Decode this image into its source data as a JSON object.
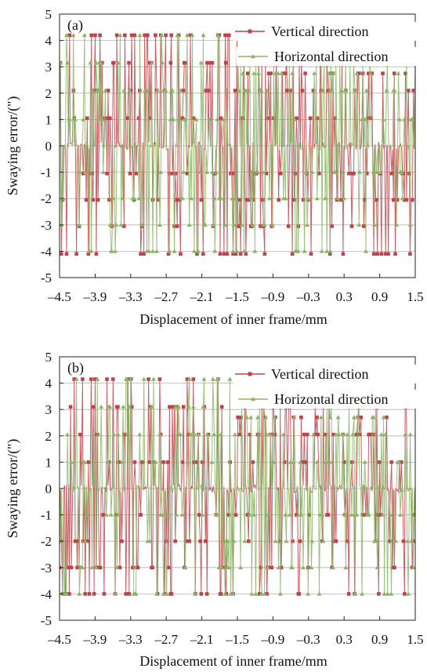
{
  "chart_data": [
    {
      "type": "line",
      "panel_label": "(a)",
      "xlabel": "Displacement of inner frame/mm",
      "ylabel": "Swaying error/(\")",
      "xlim": [
        -4.5,
        1.5
      ],
      "ylim": [
        -5,
        5
      ],
      "x_ticks": [
        "–4.5",
        "–3.9",
        "–3.3",
        "–2.7",
        "–2.1",
        "–1.5",
        "–0.9",
        "–0.3",
        "0.3",
        "0.9",
        "1.5"
      ],
      "y_ticks": [
        "5",
        "4",
        "3",
        "2",
        "1",
        "0",
        "-1",
        "-2",
        "-3",
        "-4",
        "-5"
      ],
      "grid": "horizontal",
      "legend_position": "top-right",
      "series": [
        {
          "name": "Vertical direction",
          "color": "#c0424a",
          "marker": "square",
          "levels": [
            -4.1,
            -3.05,
            -2.05,
            -1.05,
            0,
            1.05,
            2.1,
            3.15,
            4.2
          ],
          "max_level_after_x": [
            -1.5,
            2.75
          ],
          "noise_band": 0.15,
          "n_points": 360,
          "seed": 11
        },
        {
          "name": "Horizontal direction",
          "color": "#8bb566",
          "marker": "triangle",
          "levels": [
            -4.0,
            -3.0,
            -2.0,
            -1.0,
            0,
            1.0,
            2.1,
            3.15,
            4.2
          ],
          "max_level_after_x": [
            -1.5,
            2.75
          ],
          "noise_band": 0.15,
          "n_points": 360,
          "seed": 23
        }
      ]
    },
    {
      "type": "line",
      "panel_label": "(b)",
      "xlabel": "Displacement of inner frame/mm",
      "ylabel": "Swaying error/(\")",
      "xlim": [
        -4.5,
        1.5
      ],
      "ylim": [
        -5,
        5
      ],
      "x_ticks": [
        "–4.5",
        "–3.9",
        "–3.3",
        "–2.7",
        "–2.1",
        "–1.5",
        "–0.9",
        "–0.3",
        "0.3",
        "0.9",
        "1.5"
      ],
      "y_ticks": [
        "5",
        "4",
        "3",
        "2",
        "1",
        "0",
        "-1",
        "-2",
        "-3",
        "-4",
        "-5"
      ],
      "grid": "horizontal",
      "legend_position": "top-right",
      "series": [
        {
          "name": "Vertical direction",
          "color": "#c0424a",
          "marker": "square",
          "levels": [
            -4.0,
            -3.0,
            -2.0,
            -1.0,
            0,
            1.0,
            2.05,
            3.1,
            4.15
          ],
          "max_level_after_x": [
            -1.5,
            2.7
          ],
          "noise_band": 0.15,
          "n_points": 360,
          "seed": 37
        },
        {
          "name": "Horizontal direction",
          "color": "#8bb566",
          "marker": "triangle",
          "levels": [
            -4.0,
            -3.0,
            -2.0,
            -1.0,
            0,
            1.0,
            2.05,
            3.1,
            4.15
          ],
          "max_level_after_x": [
            -1.5,
            2.7
          ],
          "noise_band": 0.15,
          "n_points": 360,
          "seed": 53
        }
      ]
    }
  ]
}
